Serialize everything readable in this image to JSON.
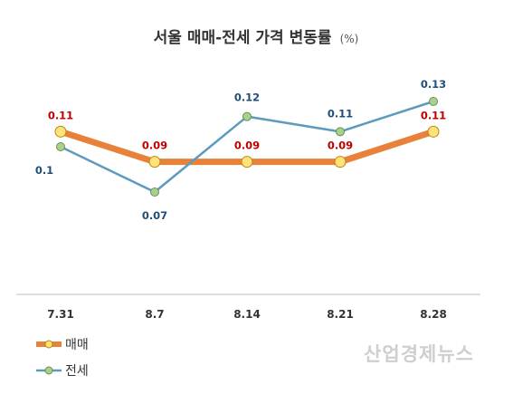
{
  "chart_data": {
    "type": "line",
    "title": "서울 매매-전세 가격 변동률",
    "title_unit": "(%)",
    "categories": [
      "7.31",
      "8.7",
      "8.14",
      "8.21",
      "8.28"
    ],
    "series": [
      {
        "name": "매매",
        "values": [
          0.11,
          0.09,
          0.09,
          0.09,
          0.11
        ],
        "labels": [
          "0.11",
          "0.09",
          "0.09",
          "0.09",
          "0.11"
        ],
        "line_color": "#E8823A",
        "marker_color": "#FFE27A",
        "label_color": "#C00000"
      },
      {
        "name": "전세",
        "values": [
          0.1,
          0.07,
          0.12,
          0.11,
          0.13
        ],
        "labels": [
          "0.1",
          "0.07",
          "0.12",
          "0.11",
          "0.13"
        ],
        "line_color": "#5B9BBE",
        "marker_color": "#A9D18E",
        "label_color": "#1F4E79"
      }
    ],
    "ylim": [
      0,
      0.15
    ],
    "grid": false,
    "legend_position": "bottom-left"
  },
  "watermark": "산업경제뉴스"
}
